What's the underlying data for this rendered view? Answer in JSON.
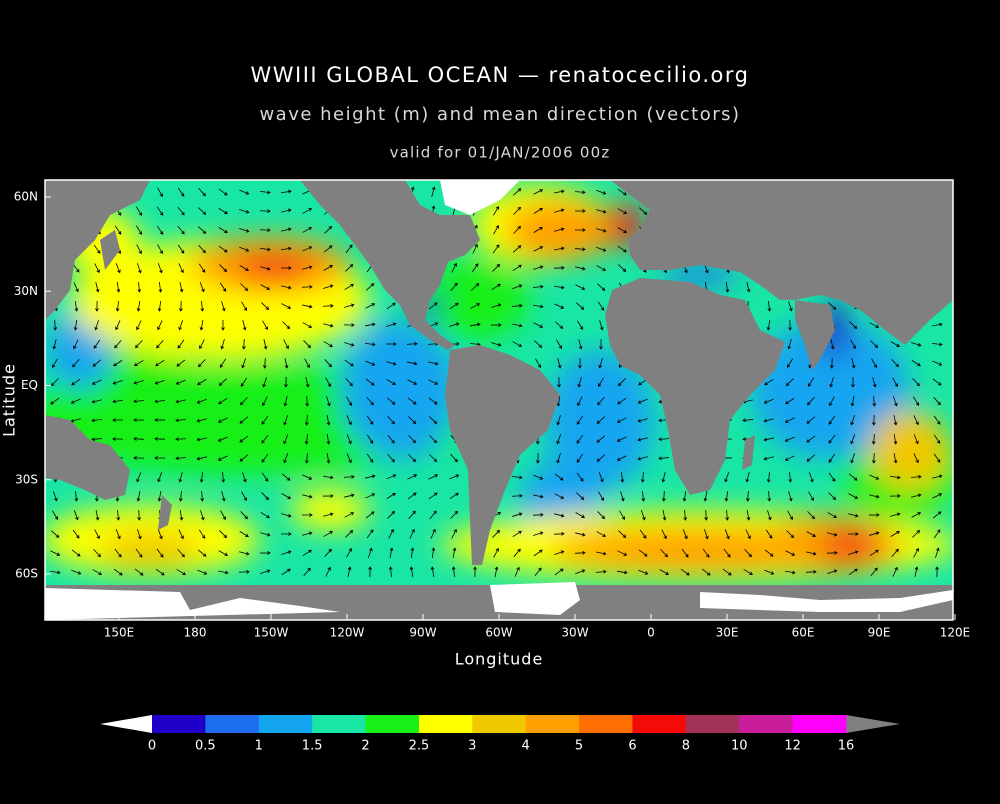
{
  "header": {
    "title": "WWIII GLOBAL OCEAN — renatocecilio.org",
    "subtitle": "wave height (m) and mean direction (vectors)",
    "valid": "valid for 01/JAN/2006 00z"
  },
  "map": {
    "x_label": "Longitude",
    "y_label": "Latitude",
    "x_ticks": [
      "150E",
      "180",
      "150W",
      "120W",
      "90W",
      "60W",
      "30W",
      "0",
      "30E",
      "60E",
      "90E",
      "120E"
    ],
    "y_ticks": [
      "60N",
      "30N",
      "EQ",
      "30S",
      "60S"
    ]
  },
  "colorbar": {
    "levels": [
      0,
      0.5,
      1,
      1.5,
      2,
      2.5,
      3,
      4,
      5,
      6,
      8,
      10,
      12,
      16
    ],
    "colors": [
      "#1e00c8",
      "#1e6ef0",
      "#14a5f0",
      "#19e6a5",
      "#19f019",
      "#ffff00",
      "#f0c800",
      "#ffa000",
      "#ff6e00",
      "#f50a0a",
      "#a0325a",
      "#c81e9b",
      "#ff00ff"
    ],
    "under_color": "#ffffff",
    "over_color": "#808080"
  }
}
